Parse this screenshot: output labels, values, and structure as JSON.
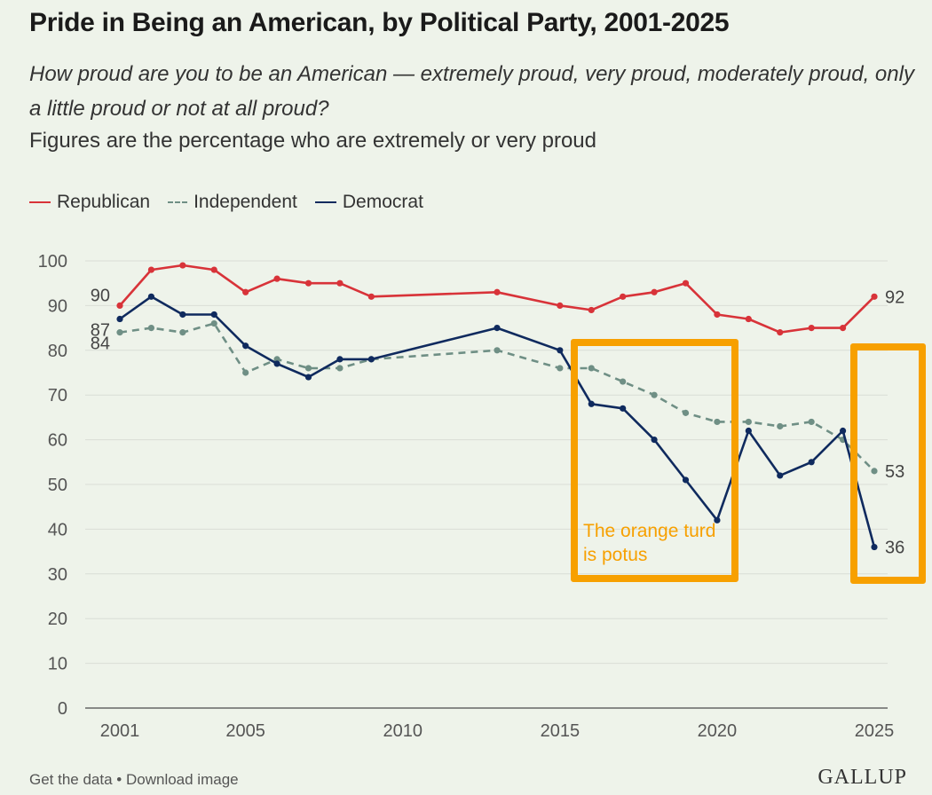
{
  "title": "Pride in Being an American, by Political Party, 2001-2025",
  "subtitle": "How proud are you to be an American — extremely proud, very proud, moderately proud, only a little proud or not at all proud?",
  "note": "Figures are the percentage who are extremely or very proud",
  "legend": {
    "republican": "Republican",
    "independent": "Independent",
    "democrat": "Democrat"
  },
  "footer": {
    "get_data": "Get the data",
    "separator": " • ",
    "download": "Download image",
    "brand": "GALLUP"
  },
  "annotation": {
    "text": "The orange turd is potus",
    "color": "#f7a000"
  },
  "colors": {
    "republican": "#d83339",
    "independent": "#6f8f85",
    "democrat": "#0f2a5e",
    "grid": "#d9ded6",
    "axis": "#555555",
    "background": "#eef3ea"
  },
  "chart_data": {
    "type": "line",
    "title": "Pride in Being an American, by Political Party, 2001-2025",
    "xlabel": "",
    "ylabel": "",
    "xlim": [
      2001,
      2025
    ],
    "ylim": [
      0,
      100
    ],
    "y_ticks": [
      0,
      10,
      20,
      30,
      40,
      50,
      60,
      70,
      80,
      90,
      100
    ],
    "x_ticks": [
      2001,
      2005,
      2010,
      2015,
      2020,
      2025
    ],
    "grid": true,
    "legend_position": "top-left",
    "series": [
      {
        "key": "republican",
        "name": "Republican",
        "style": "solid",
        "points": [
          [
            2001,
            90
          ],
          [
            2002,
            98
          ],
          [
            2003,
            99
          ],
          [
            2004,
            98
          ],
          [
            2005,
            93
          ],
          [
            2006,
            96
          ],
          [
            2007,
            95
          ],
          [
            2008,
            95
          ],
          [
            2009,
            92
          ],
          [
            2013,
            93
          ],
          [
            2015,
            90
          ],
          [
            2016,
            89
          ],
          [
            2017,
            92
          ],
          [
            2018,
            93
          ],
          [
            2019,
            95
          ],
          [
            2020,
            88
          ],
          [
            2021,
            87
          ],
          [
            2022,
            84
          ],
          [
            2023,
            85
          ],
          [
            2024,
            85
          ],
          [
            2025,
            92
          ]
        ],
        "start_label": "90",
        "end_label": "92"
      },
      {
        "key": "independent",
        "name": "Independent",
        "style": "dashed",
        "points": [
          [
            2001,
            84
          ],
          [
            2002,
            85
          ],
          [
            2003,
            84
          ],
          [
            2004,
            86
          ],
          [
            2005,
            75
          ],
          [
            2006,
            78
          ],
          [
            2007,
            76
          ],
          [
            2008,
            76
          ],
          [
            2009,
            78
          ],
          [
            2013,
            80
          ],
          [
            2015,
            76
          ],
          [
            2016,
            76
          ],
          [
            2017,
            73
          ],
          [
            2018,
            70
          ],
          [
            2019,
            66
          ],
          [
            2020,
            64
          ],
          [
            2021,
            64
          ],
          [
            2022,
            63
          ],
          [
            2023,
            64
          ],
          [
            2024,
            60
          ],
          [
            2025,
            53
          ]
        ],
        "start_label": "84",
        "end_label": "53"
      },
      {
        "key": "democrat",
        "name": "Democrat",
        "style": "solid",
        "points": [
          [
            2001,
            87
          ],
          [
            2002,
            92
          ],
          [
            2003,
            88
          ],
          [
            2004,
            88
          ],
          [
            2005,
            81
          ],
          [
            2006,
            77
          ],
          [
            2007,
            74
          ],
          [
            2008,
            78
          ],
          [
            2009,
            78
          ],
          [
            2013,
            85
          ],
          [
            2015,
            80
          ],
          [
            2016,
            68
          ],
          [
            2017,
            67
          ],
          [
            2018,
            60
          ],
          [
            2019,
            51
          ],
          [
            2020,
            42
          ],
          [
            2021,
            62
          ],
          [
            2022,
            52
          ],
          [
            2023,
            55
          ],
          [
            2024,
            62
          ],
          [
            2025,
            36
          ]
        ],
        "start_label": "87",
        "end_label": "36"
      }
    ]
  }
}
